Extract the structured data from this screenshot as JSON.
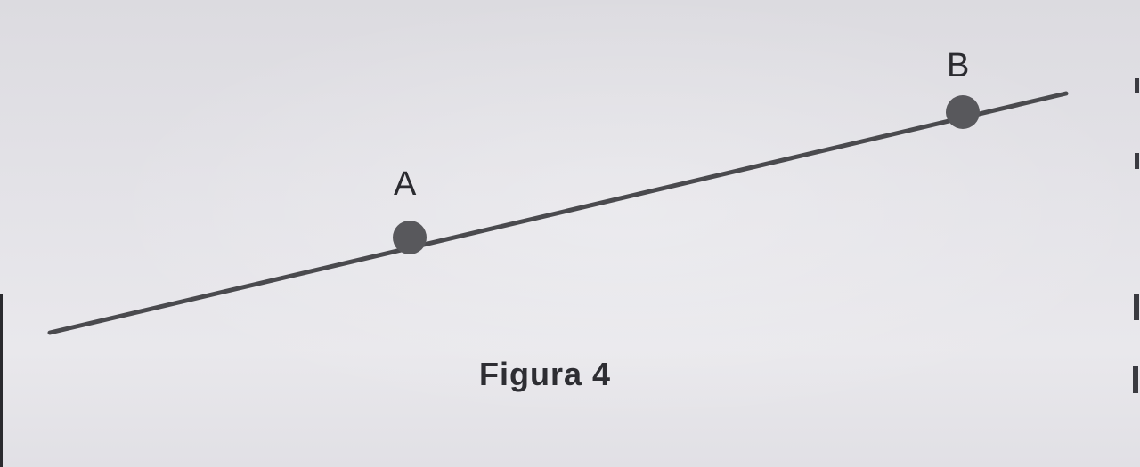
{
  "figure": {
    "caption": "Figura 4",
    "points": [
      {
        "label": "A"
      },
      {
        "label": "B"
      }
    ],
    "colors": {
      "line": "#4a4a4e",
      "point_fill": "#58585c",
      "background": "#e4e3e8"
    }
  }
}
